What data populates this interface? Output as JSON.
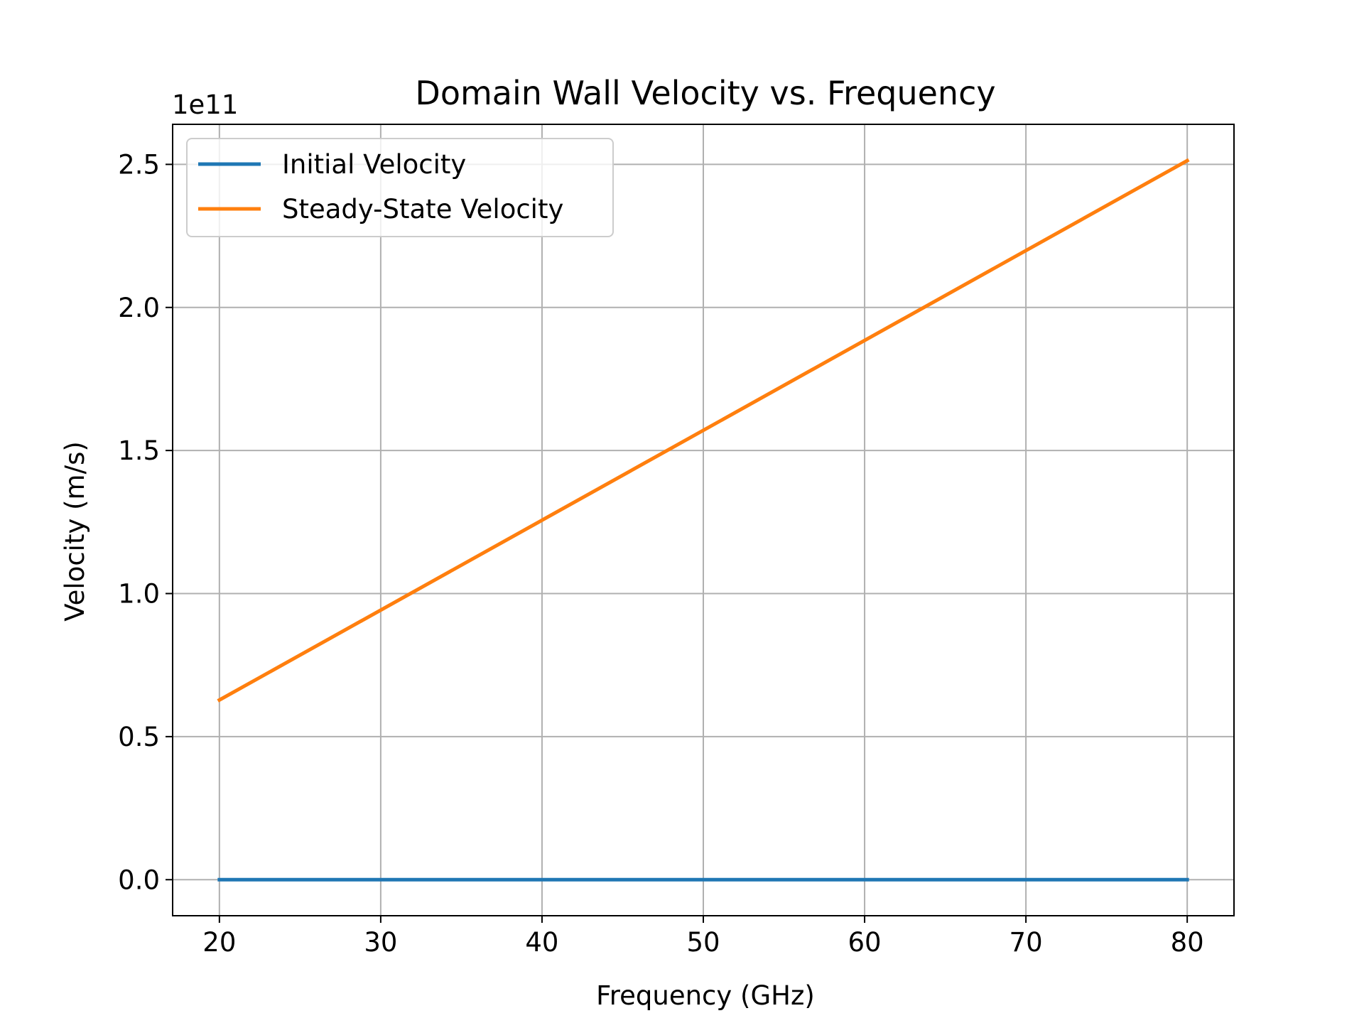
{
  "chart_data": {
    "type": "line",
    "title": "Domain Wall Velocity vs. Frequency",
    "xlabel": "Frequency (GHz)",
    "ylabel": "Velocity (m/s)",
    "y_scale_label": "1e11",
    "y_multiplier": 100000000000.0,
    "xlim": [
      17.1,
      82.9
    ],
    "ylim": [
      -0.126,
      2.64
    ],
    "x_ticks": [
      20,
      30,
      40,
      50,
      60,
      70,
      80
    ],
    "x_tick_labels": [
      "20",
      "30",
      "40",
      "50",
      "60",
      "70",
      "80"
    ],
    "y_ticks": [
      0.0,
      0.5,
      1.0,
      1.5,
      2.0,
      2.5
    ],
    "y_tick_labels": [
      "0.0",
      "0.5",
      "1.0",
      "1.5",
      "2.0",
      "2.5"
    ],
    "grid": true,
    "legend_position": "top-left",
    "x": [
      20,
      80
    ],
    "series": [
      {
        "name": "Initial Velocity",
        "color": "#1f77b4",
        "values": [
          0.0,
          0.0
        ]
      },
      {
        "name": "Steady-State Velocity",
        "color": "#ff7f0e",
        "values": [
          0.628,
          2.513
        ]
      }
    ]
  }
}
